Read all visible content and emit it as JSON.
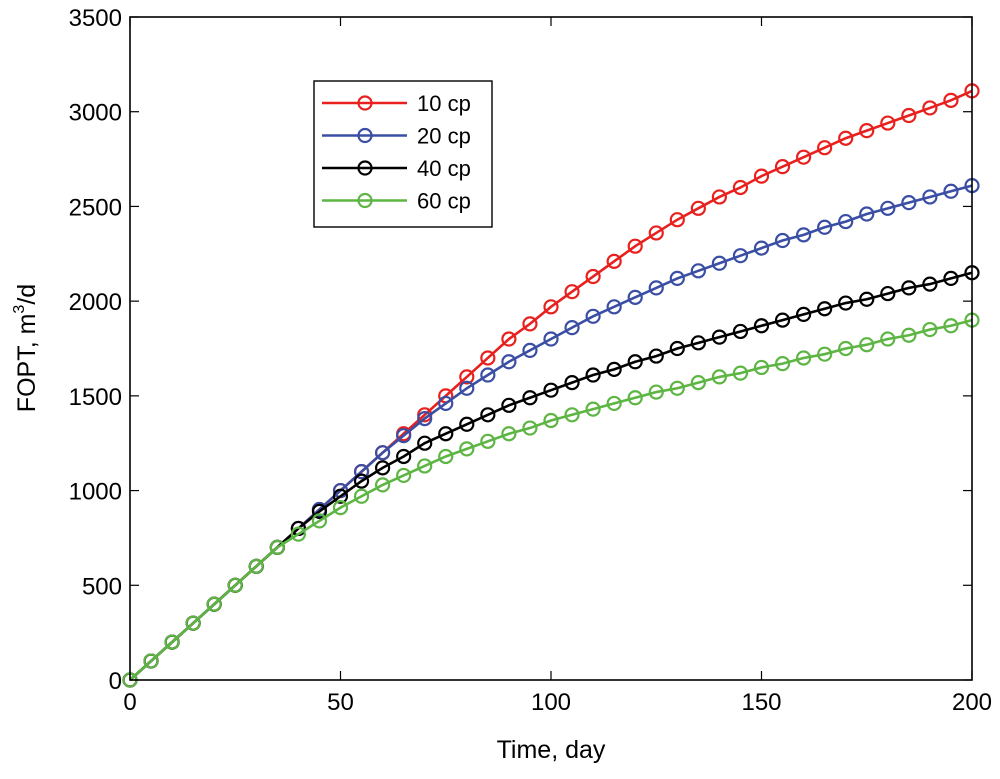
{
  "chart_data": {
    "type": "line",
    "title": "",
    "xlabel": "Time, day",
    "ylabel_main": "FOPT, m",
    "ylabel_sup": "3",
    "ylabel_tail": "/d",
    "xlim": [
      0,
      200
    ],
    "ylim": [
      0,
      3500
    ],
    "xticks": [
      "0",
      "50",
      "100",
      "150",
      "200"
    ],
    "yticks": [
      "0",
      "500",
      "1000",
      "1500",
      "2000",
      "2500",
      "3000",
      "3500"
    ],
    "legend_position": "upper-left",
    "x": [
      0,
      5,
      10,
      15,
      20,
      25,
      30,
      35,
      40,
      45,
      50,
      55,
      60,
      65,
      70,
      75,
      80,
      85,
      90,
      95,
      100,
      105,
      110,
      115,
      120,
      125,
      130,
      135,
      140,
      145,
      150,
      155,
      160,
      165,
      170,
      175,
      180,
      185,
      190,
      195,
      200
    ],
    "series": [
      {
        "name": "10 cp",
        "color": "#e8201e",
        "values": [
          0,
          100,
          200,
          300,
          400,
          500,
          600,
          700,
          800,
          900,
          1000,
          1100,
          1200,
          1300,
          1400,
          1500,
          1600,
          1700,
          1800,
          1880,
          1970,
          2050,
          2130,
          2210,
          2290,
          2360,
          2430,
          2490,
          2550,
          2600,
          2660,
          2710,
          2760,
          2810,
          2860,
          2900,
          2940,
          2980,
          3020,
          3060,
          3110
        ]
      },
      {
        "name": "20 cp",
        "color": "#3a4ea4",
        "values": [
          0,
          100,
          200,
          300,
          400,
          500,
          600,
          700,
          800,
          900,
          1000,
          1100,
          1200,
          1290,
          1380,
          1460,
          1540,
          1610,
          1680,
          1740,
          1800,
          1860,
          1920,
          1970,
          2020,
          2070,
          2120,
          2160,
          2200,
          2240,
          2280,
          2320,
          2350,
          2390,
          2420,
          2460,
          2490,
          2520,
          2550,
          2580,
          2610
        ]
      },
      {
        "name": "40 cp",
        "color": "#000000",
        "values": [
          0,
          100,
          200,
          300,
          400,
          500,
          600,
          700,
          800,
          890,
          970,
          1050,
          1120,
          1180,
          1250,
          1300,
          1350,
          1400,
          1450,
          1490,
          1530,
          1570,
          1610,
          1640,
          1680,
          1710,
          1750,
          1780,
          1810,
          1840,
          1870,
          1900,
          1930,
          1960,
          1990,
          2010,
          2040,
          2070,
          2090,
          2120,
          2150
        ]
      },
      {
        "name": "60 cp",
        "color": "#5db543",
        "values": [
          0,
          100,
          200,
          300,
          400,
          500,
          600,
          700,
          770,
          840,
          910,
          970,
          1030,
          1080,
          1130,
          1180,
          1220,
          1260,
          1300,
          1330,
          1370,
          1400,
          1430,
          1460,
          1490,
          1520,
          1540,
          1570,
          1600,
          1620,
          1650,
          1670,
          1700,
          1720,
          1750,
          1770,
          1800,
          1820,
          1850,
          1870,
          1900
        ]
      }
    ]
  }
}
